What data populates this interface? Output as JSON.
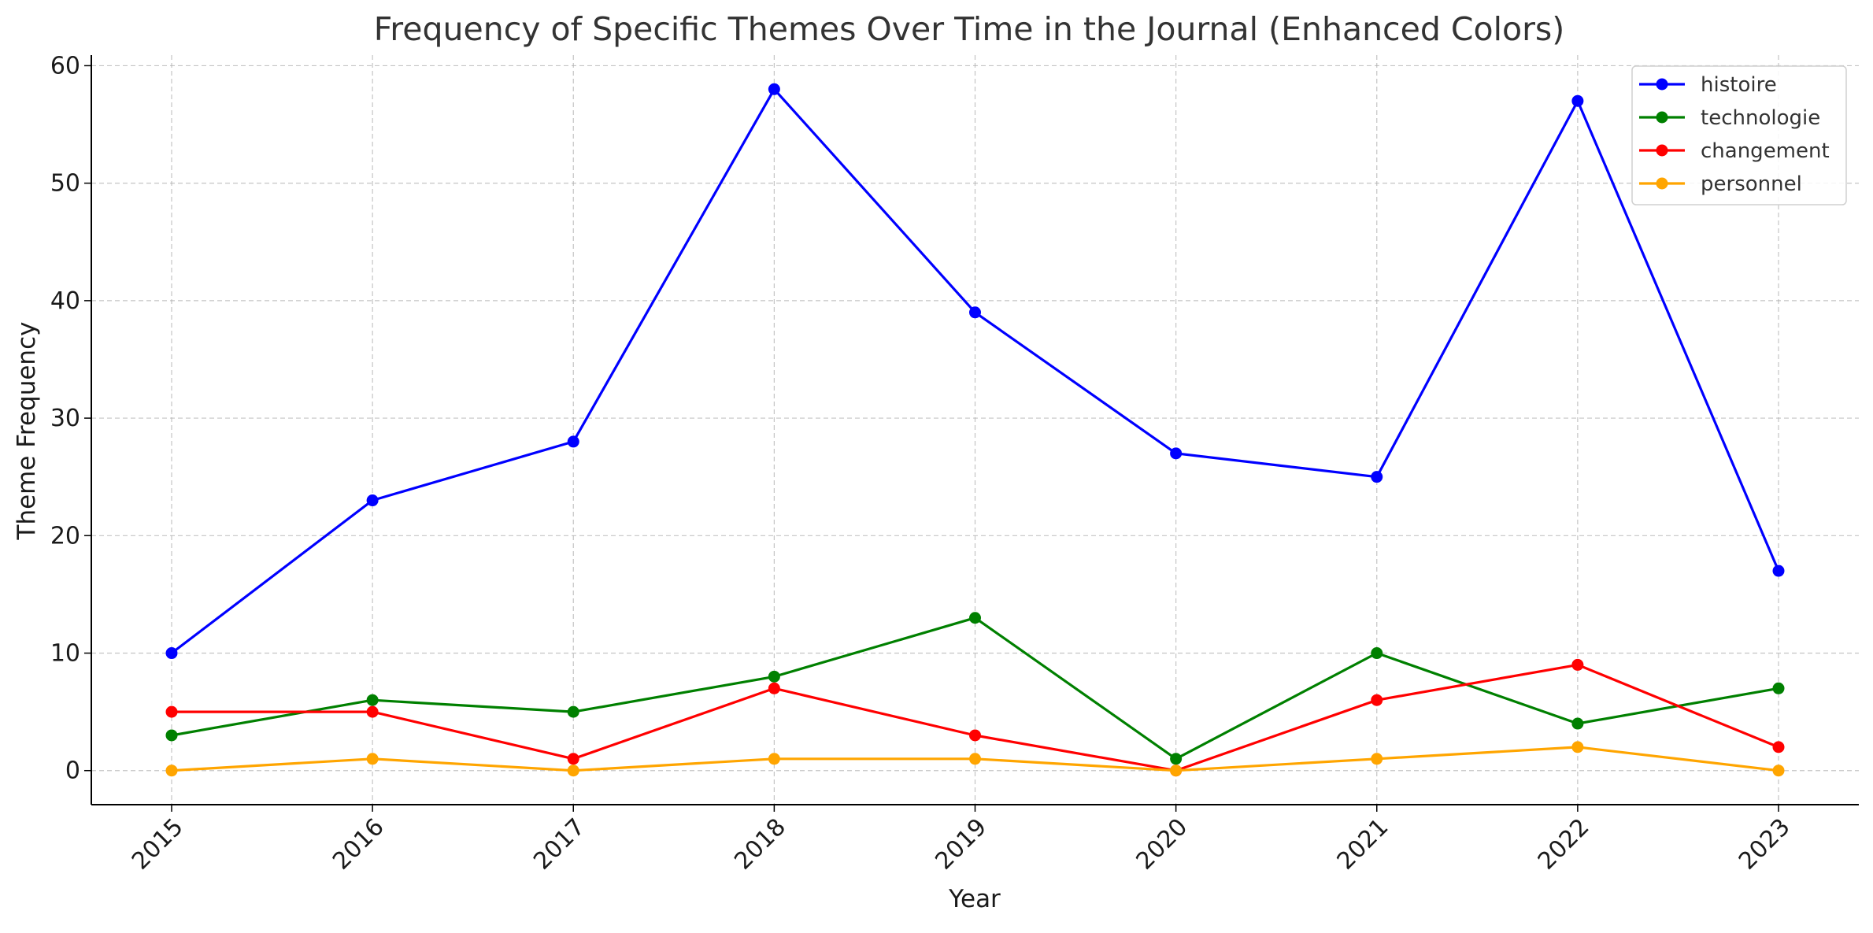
{
  "chart_data": {
    "type": "line",
    "title": "Frequency of Specific Themes Over Time in the Journal (Enhanced Colors)",
    "xlabel": "Year",
    "ylabel": "Theme Frequency",
    "x": [
      2015,
      2016,
      2017,
      2018,
      2019,
      2020,
      2021,
      2022,
      2023
    ],
    "x_tick_labels": [
      "2015",
      "2016",
      "2017",
      "2018",
      "2019",
      "2020",
      "2021",
      "2022",
      "2023"
    ],
    "y_ticks": [
      0,
      10,
      20,
      30,
      40,
      50,
      60
    ],
    "y_tick_labels": [
      "0",
      "10",
      "20",
      "30",
      "40",
      "50",
      "60"
    ],
    "ylim": [
      -2.9,
      60.9
    ],
    "grid": true,
    "legend_position": "top-right",
    "series": [
      {
        "name": "histoire",
        "color": "#0000ff",
        "values": [
          10,
          23,
          28,
          58,
          39,
          27,
          25,
          57,
          17
        ]
      },
      {
        "name": "technologie",
        "color": "#008000",
        "values": [
          3,
          6,
          5,
          8,
          13,
          1,
          10,
          4,
          7
        ]
      },
      {
        "name": "changement",
        "color": "#ff0000",
        "values": [
          5,
          5,
          1,
          7,
          3,
          0,
          6,
          9,
          2
        ]
      },
      {
        "name": "personnel",
        "color": "#ffa500",
        "values": [
          0,
          1,
          0,
          1,
          1,
          0,
          1,
          2,
          0
        ]
      }
    ]
  }
}
